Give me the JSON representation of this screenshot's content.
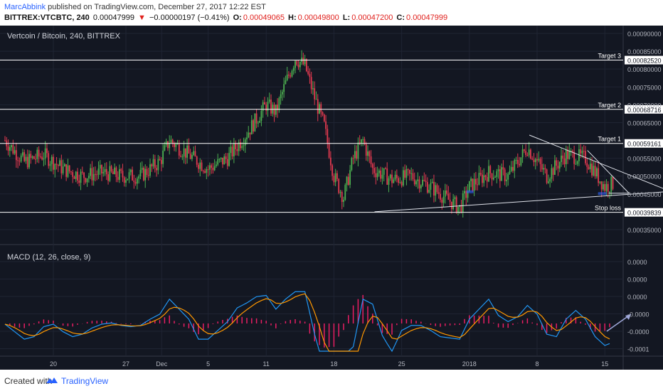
{
  "header": {
    "author": "MarcAbbink",
    "published": "published on TradingView.com, December 27, 2017 12:22 EST",
    "symbol": "BITTREX:VTCBTC, 240",
    "last": "0.00047999",
    "change_arrow": "▼",
    "change": "−0.00000197 (−0.41%)",
    "o_label": "O:",
    "o_val": "0.00049065",
    "h_label": "H:",
    "h_val": "0.00049800",
    "l_label": "L:",
    "l_val": "0.00047200",
    "c_label": "C:",
    "c_val": "0.00047999"
  },
  "footer": {
    "created": "Created with",
    "brand": "TradingView"
  },
  "colors": {
    "background": "#131722",
    "up": "#4caf50",
    "down": "#e0394f",
    "macd": "#2196f3",
    "signal": "#ff9800",
    "histogram": "#e91e63",
    "level": "#ffffff"
  },
  "chart_data": [
    {
      "type": "candlestick",
      "title": "Vertcoin / Bitcoin, 240, BITTREX",
      "y_ticks": [
        "0.00090000",
        "0.00085000",
        "0.00080000",
        "0.00075000",
        "0.00070000",
        "0.00065000",
        "0.00055000",
        "0.00050000",
        "0.00045000",
        "0.00035000"
      ],
      "ylim": [
        0.00032,
        0.00091
      ],
      "x_ticks": [
        "20",
        "27",
        "Dec",
        "5",
        "11",
        "18",
        "25",
        "2018",
        "8",
        "15"
      ],
      "levels": [
        {
          "label": "Target 3",
          "value": "0.00082520"
        },
        {
          "label": "Target 2",
          "value": "0.00068716"
        },
        {
          "label": "Target 1",
          "value": "0.00059161"
        },
        {
          "label": "Stop loss",
          "value": "0.00039839"
        }
      ],
      "close_path_days": [
        [
          0,
          0.0006
        ],
        [
          2,
          0.00054
        ],
        [
          4,
          0.00056
        ],
        [
          6,
          0.00052
        ],
        [
          8,
          0.0005
        ],
        [
          10,
          0.00051
        ],
        [
          12,
          0.0005
        ],
        [
          14,
          0.0005
        ],
        [
          16,
          0.00054
        ],
        [
          17,
          0.0006
        ],
        [
          19,
          0.00056
        ],
        [
          21,
          0.00052
        ],
        [
          23,
          0.00055
        ],
        [
          25,
          0.00062
        ],
        [
          27,
          0.0007
        ],
        [
          28,
          0.00068
        ],
        [
          29,
          0.00076
        ],
        [
          30,
          0.00083
        ],
        [
          31,
          0.00081
        ],
        [
          32,
          0.00072
        ],
        [
          33,
          0.00064
        ],
        [
          34,
          0.0005
        ],
        [
          35,
          0.00044
        ],
        [
          36,
          0.00055
        ],
        [
          37,
          0.0006
        ],
        [
          38,
          0.00052
        ],
        [
          40,
          0.00049
        ],
        [
          42,
          0.0005
        ],
        [
          44,
          0.00047
        ],
        [
          46,
          0.00043
        ],
        [
          47,
          0.00041
        ],
        [
          48,
          0.00047
        ],
        [
          50,
          0.00051
        ],
        [
          52,
          0.0005
        ],
        [
          54,
          0.00058
        ],
        [
          55,
          0.00054
        ],
        [
          56,
          0.0005
        ],
        [
          58,
          0.00056
        ],
        [
          60,
          0.00055
        ],
        [
          61,
          0.00051
        ],
        [
          62,
          0.00047
        ],
        [
          63,
          0.00048
        ]
      ]
    },
    {
      "type": "macd",
      "title": "MACD (12, 26, close, 9)",
      "y_ticks": [
        "0.0000",
        "0.0000",
        "0.0000",
        "-0.0000",
        "-0.0000",
        "-0.0001"
      ]
    }
  ]
}
